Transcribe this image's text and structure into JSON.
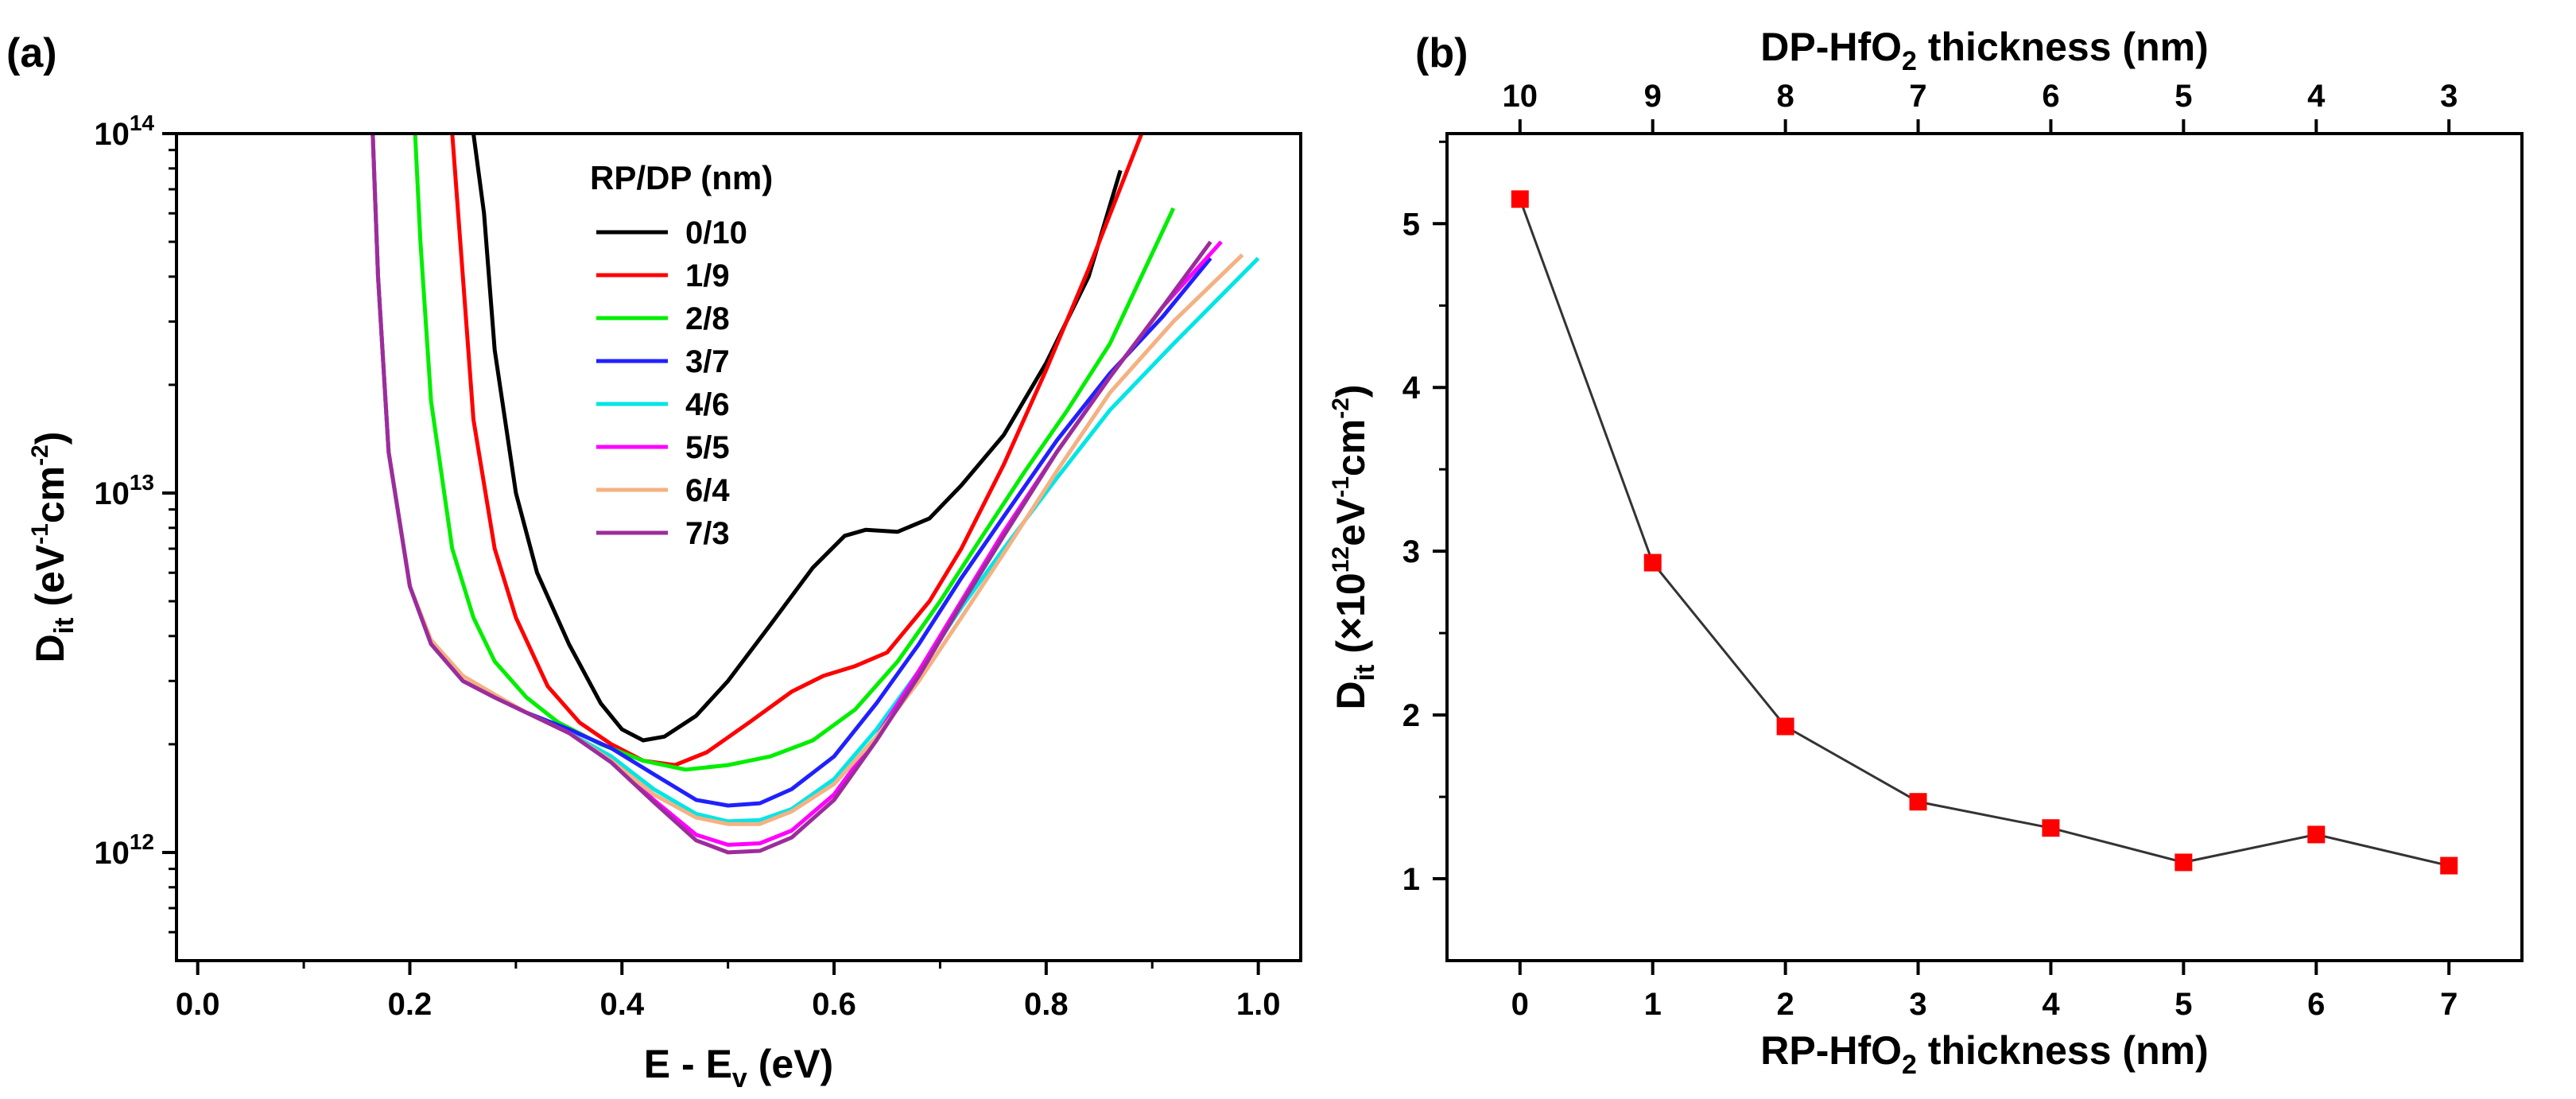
{
  "chart_data": [
    {
      "type": "line",
      "panel_label": "(a)",
      "xlabel": {
        "main": "E - E",
        "sub": "v",
        "tail": " (eV)"
      },
      "ylabel": {
        "main": "D",
        "sub": "it",
        "tail": " (eV",
        "sup1": "-1",
        "mid": "cm",
        "sup2": "-2",
        "end": ")"
      },
      "yscale": "log",
      "xlim": [
        -0.02,
        1.04
      ],
      "ylim": [
        500000000000.0,
        100000000000000.0
      ],
      "xticks": [
        0.0,
        0.2,
        0.4,
        0.6,
        0.8,
        1.0
      ],
      "xtick_labels": [
        "0.0",
        "0.2",
        "0.4",
        "0.6",
        "0.8",
        "1.0"
      ],
      "yticks": [
        {
          "value": 1000000000000.0,
          "base": "10",
          "exp": "12"
        },
        {
          "value": 10000000000000.0,
          "base": "10",
          "exp": "13"
        },
        {
          "value": 100000000000000.0,
          "base": "10",
          "exp": "14"
        }
      ],
      "legend": {
        "title": "RP/DP (nm)",
        "position": "top-center"
      },
      "series": [
        {
          "name": "0/10",
          "color": "#000000",
          "x": [
            0.26,
            0.27,
            0.28,
            0.3,
            0.32,
            0.35,
            0.38,
            0.4,
            0.42,
            0.44,
            0.47,
            0.5,
            0.54,
            0.58,
            0.61,
            0.63,
            0.66,
            0.69,
            0.72,
            0.76,
            0.8,
            0.84,
            0.87
          ],
          "y": [
            100000000000000.0,
            60000000000000.0,
            25000000000000.0,
            10000000000000.0,
            6000000000000.0,
            3800000000000.0,
            2600000000000.0,
            2200000000000.0,
            2050000000000.0,
            2100000000000.0,
            2400000000000.0,
            3000000000000.0,
            4300000000000.0,
            6200000000000.0,
            7600000000000.0,
            7900000000000.0,
            7800000000000.0,
            8500000000000.0,
            10500000000000.0,
            14500000000000.0,
            23000000000000.0,
            40000000000000.0,
            79000000000000.0
          ]
        },
        {
          "name": "1/9",
          "color": "#ff0000",
          "x": [
            0.24,
            0.25,
            0.26,
            0.28,
            0.3,
            0.33,
            0.36,
            0.39,
            0.42,
            0.45,
            0.48,
            0.52,
            0.56,
            0.59,
            0.62,
            0.65,
            0.69,
            0.72,
            0.76,
            0.8,
            0.84,
            0.89
          ],
          "y": [
            100000000000000.0,
            40000000000000.0,
            16000000000000.0,
            7000000000000.0,
            4500000000000.0,
            2900000000000.0,
            2300000000000.0,
            2000000000000.0,
            1800000000000.0,
            1750000000000.0,
            1900000000000.0,
            2300000000000.0,
            2800000000000.0,
            3100000000000.0,
            3300000000000.0,
            3600000000000.0,
            5000000000000.0,
            7000000000000.0,
            12000000000000.0,
            22000000000000.0,
            42000000000000.0,
            100000000000000.0
          ]
        },
        {
          "name": "2/8",
          "color": "#00ee00",
          "x": [
            0.205,
            0.21,
            0.22,
            0.24,
            0.26,
            0.28,
            0.31,
            0.34,
            0.38,
            0.42,
            0.46,
            0.5,
            0.54,
            0.58,
            0.62,
            0.66,
            0.7,
            0.74,
            0.78,
            0.82,
            0.86,
            0.92
          ],
          "y": [
            100000000000000.0,
            50000000000000.0,
            18000000000000.0,
            7000000000000.0,
            4500000000000.0,
            3400000000000.0,
            2700000000000.0,
            2300000000000.0,
            2000000000000.0,
            1800000000000.0,
            1700000000000.0,
            1750000000000.0,
            1850000000000.0,
            2050000000000.0,
            2500000000000.0,
            3400000000000.0,
            5000000000000.0,
            7600000000000.0,
            11500000000000.0,
            17000000000000.0,
            26000000000000.0,
            62000000000000.0
          ]
        },
        {
          "name": "3/7",
          "color": "#2020ff",
          "x": [
            0.165,
            0.17,
            0.18,
            0.2,
            0.22,
            0.25,
            0.28,
            0.31,
            0.35,
            0.39,
            0.43,
            0.47,
            0.5,
            0.53,
            0.56,
            0.6,
            0.64,
            0.68,
            0.72,
            0.76,
            0.81,
            0.86,
            0.91,
            0.955
          ],
          "y": [
            100000000000000.0,
            40000000000000.0,
            13000000000000.0,
            5500000000000.0,
            3800000000000.0,
            3000000000000.0,
            2700000000000.0,
            2450000000000.0,
            2200000000000.0,
            1950000000000.0,
            1650000000000.0,
            1400000000000.0,
            1350000000000.0,
            1370000000000.0,
            1500000000000.0,
            1850000000000.0,
            2600000000000.0,
            3800000000000.0,
            5800000000000.0,
            8600000000000.0,
            14000000000000.0,
            21500000000000.0,
            31000000000000.0,
            45000000000000.0
          ]
        },
        {
          "name": "4/6",
          "color": "#00e5e5",
          "x": [
            0.165,
            0.17,
            0.18,
            0.2,
            0.22,
            0.25,
            0.28,
            0.31,
            0.35,
            0.39,
            0.43,
            0.47,
            0.5,
            0.53,
            0.56,
            0.6,
            0.64,
            0.68,
            0.72,
            0.76,
            0.81,
            0.86,
            0.92,
            1.0
          ],
          "y": [
            100000000000000.0,
            40000000000000.0,
            13000000000000.0,
            5500000000000.0,
            3800000000000.0,
            3000000000000.0,
            2700000000000.0,
            2450000000000.0,
            2150000000000.0,
            1850000000000.0,
            1500000000000.0,
            1280000000000.0,
            1220000000000.0,
            1230000000000.0,
            1320000000000.0,
            1600000000000.0,
            2200000000000.0,
            3200000000000.0,
            4800000000000.0,
            7000000000000.0,
            11000000000000.0,
            17000000000000.0,
            26000000000000.0,
            45000000000000.0
          ]
        },
        {
          "name": "5/5",
          "color": "#ff00ff",
          "x": [
            0.165,
            0.17,
            0.18,
            0.2,
            0.22,
            0.25,
            0.28,
            0.31,
            0.35,
            0.39,
            0.43,
            0.47,
            0.5,
            0.53,
            0.56,
            0.6,
            0.64,
            0.68,
            0.72,
            0.76,
            0.81,
            0.86,
            0.91,
            0.965
          ],
          "y": [
            100000000000000.0,
            40000000000000.0,
            13000000000000.0,
            5500000000000.0,
            3800000000000.0,
            3000000000000.0,
            2700000000000.0,
            2450000000000.0,
            2150000000000.0,
            1800000000000.0,
            1400000000000.0,
            1120000000000.0,
            1050000000000.0,
            1060000000000.0,
            1150000000000.0,
            1450000000000.0,
            2100000000000.0,
            3200000000000.0,
            5000000000000.0,
            7800000000000.0,
            13000000000000.0,
            21000000000000.0,
            33000000000000.0,
            50000000000000.0
          ]
        },
        {
          "name": "6/4",
          "color": "#f4b183",
          "x": [
            0.165,
            0.17,
            0.18,
            0.2,
            0.22,
            0.25,
            0.28,
            0.31,
            0.35,
            0.39,
            0.43,
            0.47,
            0.5,
            0.53,
            0.56,
            0.6,
            0.64,
            0.68,
            0.72,
            0.76,
            0.81,
            0.86,
            0.92,
            0.985
          ],
          "y": [
            100000000000000.0,
            40000000000000.0,
            13000000000000.0,
            5500000000000.0,
            3900000000000.0,
            3100000000000.0,
            2750000000000.0,
            2450000000000.0,
            2150000000000.0,
            1800000000000.0,
            1450000000000.0,
            1250000000000.0,
            1200000000000.0,
            1200000000000.0,
            1300000000000.0,
            1550000000000.0,
            2100000000000.0,
            3000000000000.0,
            4500000000000.0,
            6800000000000.0,
            11500000000000.0,
            19000000000000.0,
            30000000000000.0,
            46000000000000.0
          ]
        },
        {
          "name": "7/3",
          "color": "#9b2d9b",
          "x": [
            0.165,
            0.17,
            0.18,
            0.2,
            0.22,
            0.25,
            0.28,
            0.31,
            0.35,
            0.39,
            0.43,
            0.47,
            0.5,
            0.53,
            0.56,
            0.6,
            0.64,
            0.68,
            0.72,
            0.76,
            0.81,
            0.86,
            0.91,
            0.955
          ],
          "y": [
            100000000000000.0,
            40000000000000.0,
            13000000000000.0,
            5500000000000.0,
            3800000000000.0,
            3000000000000.0,
            2700000000000.0,
            2450000000000.0,
            2150000000000.0,
            1780000000000.0,
            1380000000000.0,
            1080000000000.0,
            1000000000000.0,
            1010000000000.0,
            1100000000000.0,
            1400000000000.0,
            2050000000000.0,
            3100000000000.0,
            4900000000000.0,
            7600000000000.0,
            13000000000000.0,
            21000000000000.0,
            33000000000000.0,
            50000000000000.0
          ]
        }
      ]
    },
    {
      "type": "line",
      "panel_label": "(b)",
      "xlabel": {
        "main": "RP-HfO",
        "sub": "2",
        "tail": " thickness (nm)"
      },
      "top_xlabel": {
        "main": "DP-HfO",
        "sub": "2",
        "tail": " thickness (nm)"
      },
      "ylabel": {
        "main": "D",
        "sub": "it",
        "mid": " (×10",
        "sup1": "12",
        "mid2": "eV",
        "sup2": "-1",
        "mid3": "cm",
        "sup3": "-2",
        "end": ")"
      },
      "xlim": [
        -0.55,
        7.55
      ],
      "ylim": [
        0.5,
        5.55
      ],
      "xticks": [
        0,
        1,
        2,
        3,
        4,
        5,
        6,
        7
      ],
      "xtick_labels": [
        "0",
        "1",
        "2",
        "3",
        "4",
        "5",
        "6",
        "7"
      ],
      "top_xtick_labels": [
        "10",
        "9",
        "8",
        "7",
        "6",
        "5",
        "4",
        "3"
      ],
      "yticks": [
        1,
        2,
        3,
        4,
        5
      ],
      "ytick_labels": [
        "1",
        "2",
        "3",
        "4",
        "5"
      ],
      "line_color": "#333333",
      "marker_color": "#ff0000",
      "x": [
        0,
        1,
        2,
        3,
        4,
        5,
        6,
        7
      ],
      "y": [
        5.15,
        2.93,
        1.93,
        1.47,
        1.31,
        1.1,
        1.27,
        1.08
      ]
    }
  ]
}
